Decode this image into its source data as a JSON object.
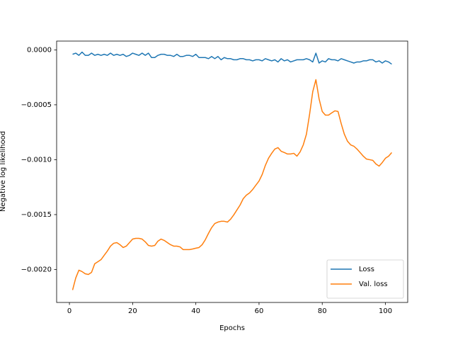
{
  "chart_data": {
    "type": "line",
    "x_label": "Epochs",
    "y_label": "Negative log likelihood",
    "x": [
      1,
      2,
      3,
      4,
      5,
      6,
      7,
      8,
      9,
      10,
      11,
      12,
      13,
      14,
      15,
      16,
      17,
      18,
      19,
      20,
      21,
      22,
      23,
      24,
      25,
      26,
      27,
      28,
      29,
      30,
      31,
      32,
      33,
      34,
      35,
      36,
      37,
      38,
      39,
      40,
      41,
      42,
      43,
      44,
      45,
      46,
      47,
      48,
      49,
      50,
      51,
      52,
      53,
      54,
      55,
      56,
      57,
      58,
      59,
      60,
      61,
      62,
      63,
      64,
      65,
      66,
      67,
      68,
      69,
      70,
      71,
      72,
      73,
      74,
      75,
      76,
      77,
      78,
      79,
      80,
      81,
      82,
      83,
      84,
      85,
      86,
      87,
      88,
      89,
      90,
      91,
      92,
      93,
      94,
      95,
      96,
      97,
      98,
      99,
      100,
      101,
      102
    ],
    "series": [
      {
        "name": "Loss",
        "color": "#1f77b4",
        "values": [
          -4e-05,
          -3e-05,
          -5e-05,
          -2e-05,
          -5e-05,
          -5e-05,
          -3e-05,
          -5e-05,
          -4e-05,
          -5e-05,
          -4e-05,
          -5e-05,
          -3e-05,
          -5e-05,
          -4e-05,
          -5e-05,
          -4e-05,
          -6e-05,
          -5e-05,
          -3e-05,
          -4e-05,
          -5e-05,
          -3e-05,
          -5e-05,
          -3e-05,
          -7e-05,
          -7e-05,
          -5e-05,
          -4e-05,
          -4e-05,
          -5e-05,
          -5e-05,
          -6e-05,
          -4e-05,
          -6e-05,
          -6e-05,
          -5e-05,
          -5e-05,
          -6e-05,
          -4e-05,
          -7e-05,
          -7e-05,
          -7e-05,
          -8e-05,
          -6e-05,
          -8e-05,
          -6e-05,
          -9e-05,
          -7e-05,
          -8e-05,
          -8e-05,
          -9e-05,
          -9e-05,
          -8e-05,
          -8e-05,
          -9e-05,
          -9e-05,
          -0.0001,
          -9e-05,
          -9e-05,
          -0.0001,
          -8e-05,
          -9e-05,
          -0.0001,
          -9e-05,
          -0.00011,
          -8e-05,
          -0.0001,
          -9e-05,
          -0.00011,
          -0.0001,
          -9e-05,
          -9e-05,
          -9e-05,
          -8e-05,
          -9e-05,
          -0.00011,
          -3e-05,
          -0.00012,
          -0.0001,
          -0.00011,
          -8e-05,
          -9e-05,
          -9e-05,
          -0.0001,
          -8e-05,
          -9e-05,
          -0.0001,
          -0.00011,
          -0.00012,
          -0.00011,
          -0.00011,
          -0.0001,
          -0.0001,
          -9e-05,
          -9e-05,
          -0.00011,
          -0.0001,
          -0.00012,
          -0.0001,
          -0.00011,
          -0.00013
        ]
      },
      {
        "name": "Val. loss",
        "color": "#ff7f0e",
        "values": [
          -0.002187,
          -0.002077,
          -0.002006,
          -0.002019,
          -0.002039,
          -0.002045,
          -0.002026,
          -0.001948,
          -0.001929,
          -0.00191,
          -0.001871,
          -0.001832,
          -0.001787,
          -0.001761,
          -0.001755,
          -0.001774,
          -0.0018,
          -0.001787,
          -0.001755,
          -0.001723,
          -0.001716,
          -0.001716,
          -0.001723,
          -0.001748,
          -0.001781,
          -0.001787,
          -0.001781,
          -0.001742,
          -0.001723,
          -0.001735,
          -0.001755,
          -0.001774,
          -0.001787,
          -0.001787,
          -0.001794,
          -0.001819,
          -0.001819,
          -0.001819,
          -0.001813,
          -0.001806,
          -0.0018,
          -0.001774,
          -0.001729,
          -0.001671,
          -0.001619,
          -0.001581,
          -0.001568,
          -0.001561,
          -0.001561,
          -0.001568,
          -0.001542,
          -0.001503,
          -0.001458,
          -0.001413,
          -0.001355,
          -0.001323,
          -0.001303,
          -0.001271,
          -0.001232,
          -0.001194,
          -0.001135,
          -0.001052,
          -0.000987,
          -0.000942,
          -0.000903,
          -0.00089,
          -0.000923,
          -0.000935,
          -0.000948,
          -0.000948,
          -0.000942,
          -0.000968,
          -0.000929,
          -0.000865,
          -0.000768,
          -0.000587,
          -0.000381,
          -0.000271,
          -0.000445,
          -0.000561,
          -0.000594,
          -0.000594,
          -0.000574,
          -0.000555,
          -0.000561,
          -0.000671,
          -0.000768,
          -0.000832,
          -0.000865,
          -0.000877,
          -0.000903,
          -0.000935,
          -0.000968,
          -0.000994,
          -0.001,
          -0.001006,
          -0.001039,
          -0.001058,
          -0.001026,
          -0.000987,
          -0.000968,
          -0.000935
        ]
      }
    ],
    "xlim": [
      -4.05,
      107.05
    ],
    "xticks": [
      0,
      20,
      40,
      60,
      80,
      100
    ],
    "ylim": [
      -0.0023,
      8e-05
    ],
    "yticks": [
      {
        "value": -0.002,
        "label": "−0.0020"
      },
      {
        "value": -0.0015,
        "label": "−0.0015"
      },
      {
        "value": -0.001,
        "label": "−0.0010"
      },
      {
        "value": -0.0005,
        "label": "−0.0005"
      },
      {
        "value": 0,
        "label": "0.0000"
      }
    ],
    "grid": false,
    "legend": "lower right"
  }
}
